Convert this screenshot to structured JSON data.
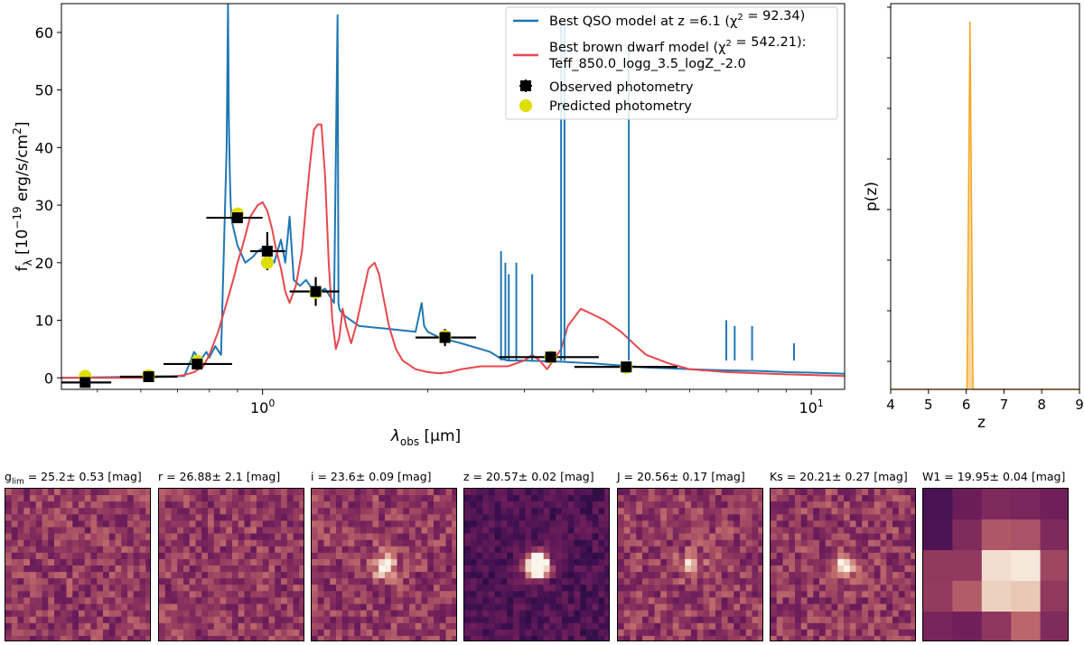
{
  "chart_data": [
    {
      "type": "line",
      "xscale": "log",
      "xlabel": "λ_obs [μm]",
      "ylabel": "f_λ [10^-19 erg/s/cm^2]",
      "xlim": [
        0.43,
        11.5
      ],
      "ylim": [
        -2,
        65
      ],
      "xticks": [
        {
          "value": 1,
          "label": "10^0"
        },
        {
          "value": 10,
          "label": "10^1"
        }
      ],
      "yticks": [
        0,
        10,
        20,
        30,
        40,
        50,
        60
      ],
      "legend": {
        "position": "top-right",
        "entries": [
          {
            "label": "Best QSO model at z =6.1 (χ² = 92.34)",
            "color": "#1f77b4",
            "marker": "line"
          },
          {
            "label": "Best brown dwarf model (χ² = 542.21):",
            "label2": "Teff_850.0_logg_3.5_logZ_-2.0",
            "color": "#e8474d",
            "marker": "line"
          },
          {
            "label": "Observed photometry",
            "color": "#000000",
            "marker": "square-errorbar"
          },
          {
            "label": "Predicted photometry",
            "color": "#dede00",
            "marker": "circle"
          }
        ]
      },
      "series": [
        {
          "name": "Best QSO model",
          "color": "#1f77b4",
          "x": [
            0.43,
            0.72,
            0.74,
            0.75,
            0.77,
            0.79,
            0.8,
            0.82,
            0.84,
            0.86,
            0.865,
            0.868,
            0.872,
            0.875,
            0.88,
            0.9,
            0.93,
            0.96,
            0.98,
            1.0,
            1.02,
            1.05,
            1.08,
            1.1,
            1.12,
            1.14,
            1.17,
            1.2,
            1.23,
            1.27,
            1.3,
            1.35,
            1.37,
            1.375,
            1.38,
            1.4,
            1.5,
            1.7,
            1.9,
            1.95,
            1.97,
            2.0,
            2.1,
            2.3,
            2.5,
            2.6,
            2.65,
            2.7,
            2.75,
            2.8,
            3.0,
            3.5,
            4.0,
            4.7,
            5.0,
            6.0,
            7.0,
            8.0,
            9.0,
            10.0,
            11.5
          ],
          "y": [
            0,
            0.3,
            3,
            4.5,
            3,
            4.5,
            3.5,
            5.5,
            4,
            40,
            65,
            45,
            35,
            30,
            27,
            23,
            20,
            21,
            22,
            22.5,
            21.5,
            20,
            24,
            20,
            28,
            17,
            16,
            17,
            15.5,
            15,
            15.5,
            13,
            63,
            13,
            12,
            11,
            9,
            8.5,
            8,
            13,
            9,
            8,
            7,
            6,
            5,
            4.5,
            4,
            3.5,
            3.2,
            3,
            3,
            2.8,
            2.5,
            2,
            1.8,
            1.5,
            1.3,
            1.2,
            1,
            0.9,
            0.7
          ]
        },
        {
          "name": "Best brown dwarf model",
          "color": "#e8474d",
          "x": [
            0.43,
            0.6,
            0.7,
            0.72,
            0.75,
            0.78,
            0.8,
            0.83,
            0.86,
            0.89,
            0.9,
            0.92,
            0.95,
            0.98,
            1.0,
            1.02,
            1.04,
            1.06,
            1.08,
            1.1,
            1.12,
            1.15,
            1.18,
            1.2,
            1.22,
            1.24,
            1.26,
            1.28,
            1.3,
            1.32,
            1.34,
            1.36,
            1.38,
            1.4,
            1.42,
            1.45,
            1.48,
            1.52,
            1.56,
            1.6,
            1.63,
            1.66,
            1.7,
            1.75,
            1.8,
            1.9,
            2.0,
            2.1,
            2.2,
            2.3,
            2.5,
            2.8,
            3.0,
            3.1,
            3.2,
            3.3,
            3.5,
            3.6,
            3.8,
            4.0,
            4.2,
            4.5,
            4.8,
            5.0,
            5.5,
            6.0,
            7.0,
            8.0,
            9.0,
            10.0,
            11.5
          ],
          "y": [
            0,
            0,
            0.3,
            0.5,
            1,
            2,
            4,
            8,
            13,
            18,
            20,
            23,
            28,
            30,
            30.5,
            29,
            26,
            22,
            19,
            15,
            13,
            16,
            22,
            30,
            37,
            43,
            44,
            44,
            35,
            20,
            10,
            5,
            7,
            12,
            9,
            6,
            9,
            14,
            19,
            20,
            18,
            14,
            9,
            5,
            3,
            1.5,
            1,
            0.8,
            1,
            1.5,
            2,
            2,
            3,
            4,
            3,
            1.5,
            5,
            9,
            12,
            11,
            10,
            8,
            5.5,
            4,
            2.5,
            1.5,
            1,
            0.8,
            0.6,
            0.5,
            0.3
          ]
        }
      ],
      "observed_photometry": [
        {
          "x": 0.475,
          "y": -0.8,
          "xerr": [
            0.43,
            0.53
          ],
          "yerr": 0.5
        },
        {
          "x": 0.62,
          "y": 0.2,
          "xerr": [
            0.55,
            0.7
          ],
          "yerr": 0.4
        },
        {
          "x": 0.76,
          "y": 2.4,
          "xerr": [
            0.66,
            0.88
          ],
          "yerr": 0.8
        },
        {
          "x": 0.9,
          "y": 27.8,
          "xerr": [
            0.79,
            1.0
          ],
          "yerr": 0.8
        },
        {
          "x": 1.02,
          "y": 22.0,
          "xerr": [
            0.95,
            1.1
          ],
          "yerr": 3.3
        },
        {
          "x": 1.25,
          "y": 15.0,
          "xerr": [
            1.12,
            1.38
          ],
          "yerr": 2.5
        },
        {
          "x": 2.15,
          "y": 7.0,
          "xerr": [
            1.9,
            2.45
          ],
          "yerr": 1.5
        },
        {
          "x": 3.35,
          "y": 3.6,
          "xerr": [
            2.7,
            4.1
          ],
          "yerr": 0.3
        },
        {
          "x": 4.6,
          "y": 1.9,
          "xerr": [
            3.7,
            5.7
          ],
          "yerr": 0.3
        }
      ],
      "predicted_photometry": [
        {
          "x": 0.475,
          "y": 0.3
        },
        {
          "x": 0.62,
          "y": 0.4
        },
        {
          "x": 0.76,
          "y": 2.9
        },
        {
          "x": 0.9,
          "y": 28.5
        },
        {
          "x": 1.02,
          "y": 20.0
        },
        {
          "x": 1.25,
          "y": 14.8
        },
        {
          "x": 2.15,
          "y": 7.2
        },
        {
          "x": 3.35,
          "y": 3.6
        },
        {
          "x": 4.6,
          "y": 1.8
        }
      ]
    },
    {
      "type": "line",
      "xlabel": "z",
      "ylabel": "p(z)",
      "xlim": [
        4,
        9
      ],
      "xticks": [
        4,
        5,
        6,
        7,
        8,
        9
      ],
      "peak_color": "#f5a623",
      "x": [
        4,
        6.02,
        6.06,
        6.1,
        6.14,
        6.18,
        9
      ],
      "y": [
        0,
        0,
        0.5,
        1.0,
        0.5,
        0,
        0
      ]
    }
  ],
  "cutouts": [
    {
      "band": "g",
      "sub": "lim",
      "value": "25.2",
      "err": "0.53",
      "unit": "[mag]",
      "grid": 24,
      "source_strength": 0,
      "seed": 11
    },
    {
      "band": "r",
      "sub": "",
      "value": "26.88",
      "err": "2.1",
      "unit": "[mag]",
      "grid": 24,
      "source_strength": 0,
      "seed": 23
    },
    {
      "band": "i",
      "sub": "",
      "value": "23.6",
      "err": "0.09",
      "unit": "[mag]",
      "grid": 24,
      "source_strength": 0.6,
      "seed": 37
    },
    {
      "band": "z",
      "sub": "",
      "value": "20.57",
      "err": "0.02",
      "unit": "[mag]",
      "grid": 24,
      "source_strength": 1.6,
      "seed": 41,
      "dark": true
    },
    {
      "band": "J",
      "sub": "",
      "value": "20.56",
      "err": "0.17",
      "unit": "[mag]",
      "grid": 24,
      "source_strength": 0.4,
      "seed": 53
    },
    {
      "band": "Ks",
      "sub": "",
      "value": "20.21",
      "err": "0.27",
      "unit": "[mag]",
      "grid": 24,
      "source_strength": 0.6,
      "seed": 67
    },
    {
      "band": "W1",
      "sub": "",
      "value": "19.95",
      "err": "0.04",
      "unit": "[mag]",
      "grid": 5,
      "source_strength": 1,
      "seed": 71
    }
  ]
}
